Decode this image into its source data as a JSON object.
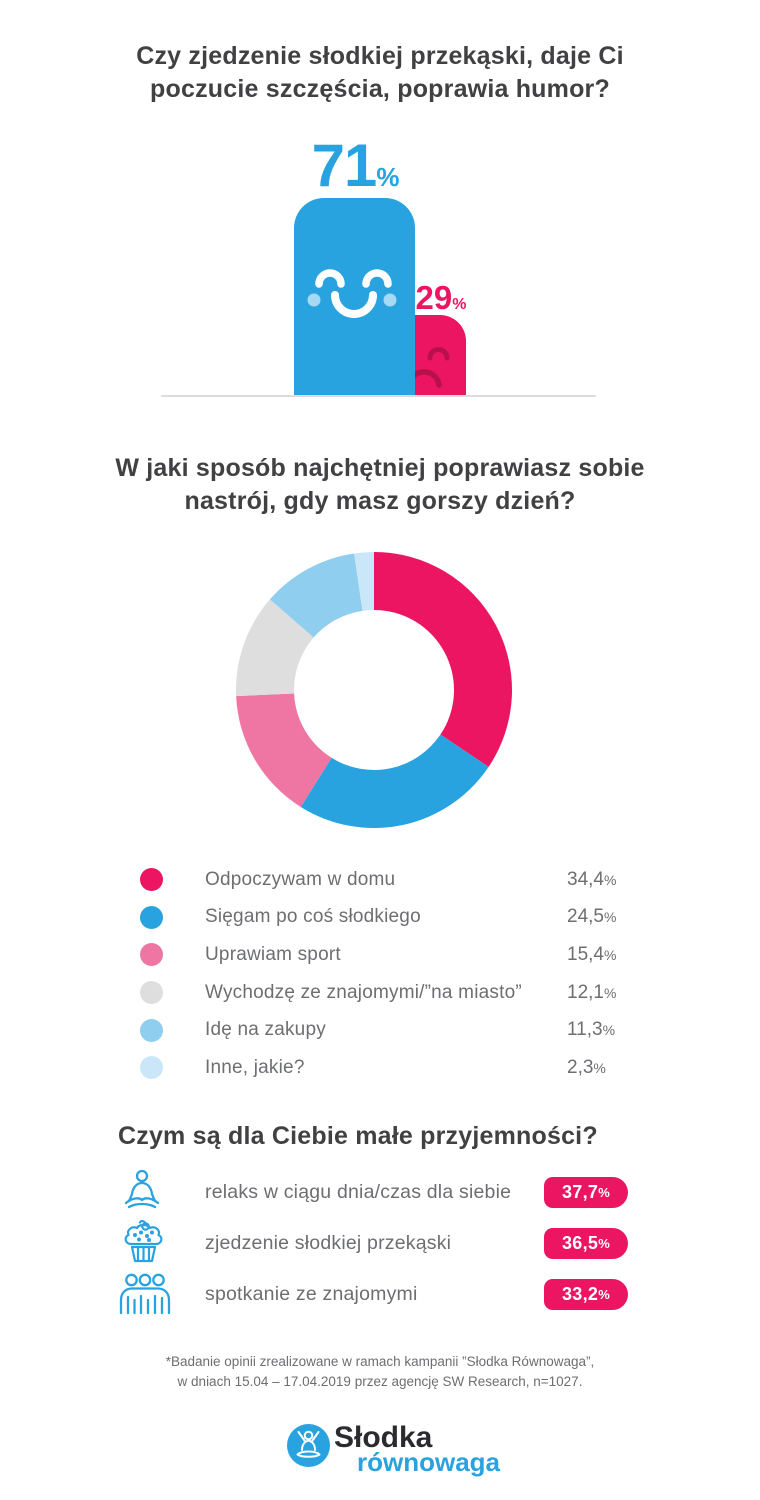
{
  "colors": {
    "blue": "#29A3DF",
    "magenta": "#EC1561",
    "pink": "#EF76A3",
    "gray_slice": "#DEDEDE",
    "light_blue": "#8FCEEF",
    "pale_blue": "#C9E7F8",
    "title_text": "#414042",
    "body_text": "#6D6E71",
    "baseline": "#DCDCDC",
    "cheek": "#A6D9F4"
  },
  "percent_sign": "%",
  "chart_data": [
    {
      "type": "bar",
      "title": "Czy zjedzenie słodkiej przekąski, daje Ci poczucie szczęścia, poprawia humor?",
      "categories": [
        "happy-face-bar",
        "sad-face-bar"
      ],
      "values": [
        71,
        29
      ],
      "value_labels": [
        "71",
        "29"
      ],
      "colors": [
        "#29A3DF",
        "#EC1561"
      ],
      "ylim": [
        0,
        100
      ],
      "grid": "off"
    },
    {
      "type": "donut",
      "title": "W jaki sposób najchętniej poprawiasz sobie nastrój, gdy masz gorszy dzień?",
      "categories": [
        "Odpoczywam w domu",
        "Sięgam po coś słodkiego",
        "Uprawiam sport",
        "Wychodzę ze znajomymi/”na miasto”",
        "Idę na zakupy",
        "Inne, jakie?"
      ],
      "values": [
        34.4,
        24.5,
        15.4,
        12.1,
        11.3,
        2.3
      ],
      "value_labels": [
        "34,4",
        "24,5",
        "15,4",
        "12,1",
        "11,3",
        "2,3"
      ],
      "colors": [
        "#EC1561",
        "#29A3DF",
        "#EF76A3",
        "#DEDEDE",
        "#8FCEEF",
        "#C9E7F8"
      ],
      "start_angle": "top",
      "direction": "clockwise",
      "legend_position": "bottom"
    },
    {
      "type": "bar",
      "title": "Czym są dla Ciebie małe przyjemności?",
      "categories": [
        "relaks w ciągu dnia/czas dla siebie",
        "zjedzenie słodkiej przekąski",
        "spotkanie ze znajomymi"
      ],
      "values": [
        37.7,
        36.5,
        33.2
      ],
      "value_labels": [
        "37,7",
        "36,5",
        "33,2"
      ],
      "icons": [
        "yoga-person-icon",
        "cupcake-icon",
        "people-group-icon"
      ],
      "badge_color": "#EC1561"
    }
  ],
  "footnote": {
    "line1": "*Badanie opinii zrealizowane w ramach kampanii ”Słodka Równowaga”,",
    "line2": "w dniach 15.04 – 17.04.2019 przez agencję SW Research, n=1027."
  },
  "logo": {
    "name_top": "Słodka",
    "name_bottom": "równowaga"
  }
}
